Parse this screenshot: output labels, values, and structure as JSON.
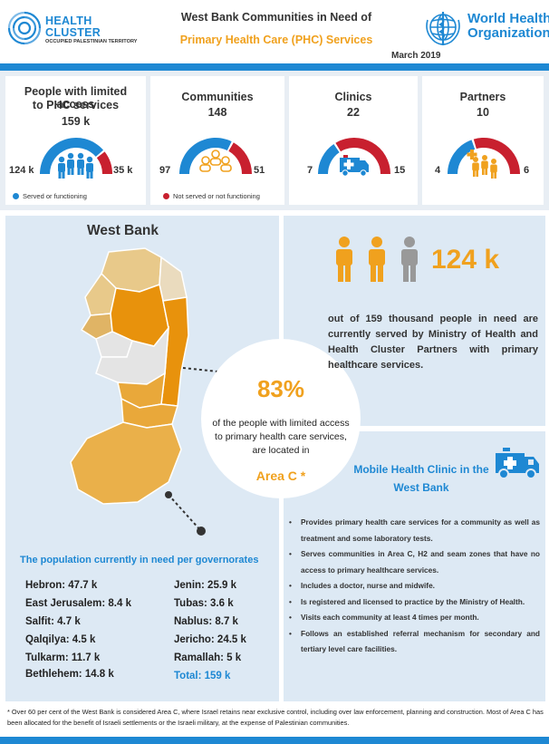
{
  "header": {
    "org_name_line1": "HEALTH",
    "org_name_line2": "CLUSTER",
    "org_subtitle": "OCCUPIED PALESTINIAN TERRITORY",
    "title_line1": "West Bank Communities in Need of",
    "title_line2": "Primary Health Care (PHC) Services",
    "date": "March 2019",
    "who_line1": "World Health",
    "who_line2": "Organization"
  },
  "stats": [
    {
      "title_line1": "People with limited access",
      "title_line2": "to PHC services",
      "value": "159 k",
      "left": "124 k",
      "right": "35 k",
      "icon": "people-group-icon",
      "served": 124,
      "not_served": 35
    },
    {
      "title_line1": "Communities",
      "title_line2": "",
      "value": "148",
      "left": "97",
      "right": "51",
      "icon": "community-icon",
      "served": 97,
      "not_served": 51
    },
    {
      "title_line1": "Clinics",
      "title_line2": "",
      "value": "22",
      "left": "7",
      "right": "15",
      "icon": "ambulance-icon",
      "served": 7,
      "not_served": 15
    },
    {
      "title_line1": "Partners",
      "title_line2": "",
      "value": "10",
      "left": "4",
      "right": "6",
      "icon": "medical-staff-icon",
      "served": 4,
      "not_served": 6
    }
  ],
  "legend": {
    "served": "Served or functioning",
    "not_served": "Not served or not functioning"
  },
  "colors": {
    "blue": "#1e88d3",
    "red": "#c8202f",
    "orange": "#f0a11e",
    "gray": "#999999"
  },
  "map": {
    "title": "West Bank"
  },
  "highlight": {
    "percent": "83%",
    "text": "of the people with limited access to primary health care services, are located in",
    "area": "Area C *"
  },
  "served_summary": {
    "value": "124 k",
    "text": "out of 159 thousand people in need are currently served by Ministry of Health and Health Cluster Partners with primary healthcare services."
  },
  "governorates": {
    "title": "The population currently in need per governorates",
    "left": [
      "Hebron: 47.7 k",
      "East Jerusalem:  8.4 k",
      "Salfit: 4.7 k",
      "Qalqilya: 4.5 k",
      "Tulkarm: 11.7 k",
      "Bethlehem:  14.8 k"
    ],
    "right": [
      "Jenin: 25.9 k",
      "Tubas: 3.6 k",
      "Nablus: 8.7 k",
      "Jericho: 24.5 k",
      "Ramallah: 5 k"
    ],
    "total": "Total: 159 k"
  },
  "mobile_clinic": {
    "title": "Mobile Health Clinic in the West Bank",
    "bullets": [
      "Provides primary health care services for a community as well as treatment and some laboratory tests.",
      "Serves communities in Area C, H2 and seam zones that have no access to primary healthcare services.",
      "Includes a doctor, nurse and midwife.",
      "Is registered and licensed to practice by the Ministry of Health.",
      "Visits each community at least 4 times per month.",
      "Follows an established referral mechanism for secondary and tertiary level care facilities."
    ]
  },
  "footnote": "* Over 60 per cent of the West Bank is considered Area C, where Israel retains near exclusive control, including over law enforcement, planning and construction. Most of Area C has been allocated for the benefit of Israeli settlements or the Israeli military, at the expense of Palestinian communities."
}
